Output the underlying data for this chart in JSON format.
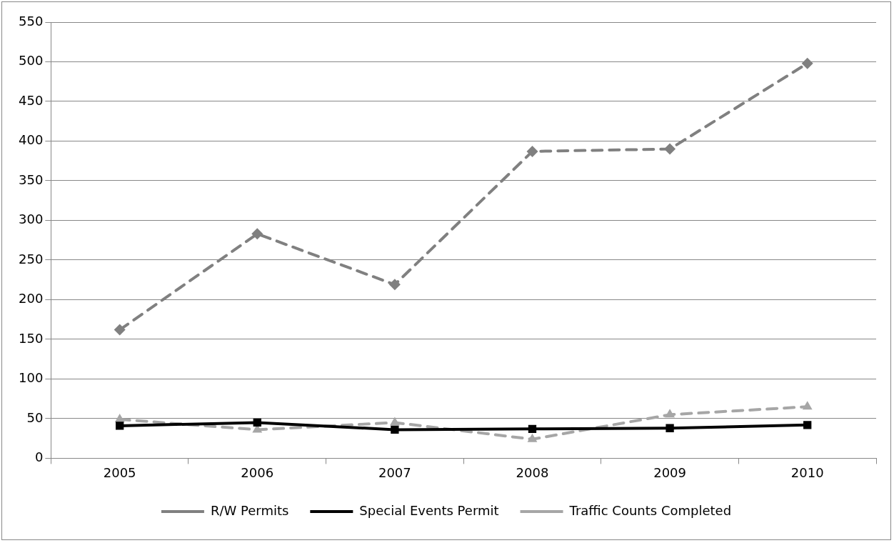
{
  "chart_data": {
    "type": "line",
    "categories": [
      "2005",
      "2006",
      "2007",
      "2008",
      "2009",
      "2010"
    ],
    "series": [
      {
        "name": "R/W Permits",
        "color": "#808080",
        "marker": "diamond",
        "line_style": "dashed",
        "values": [
          162,
          283,
          219,
          387,
          390,
          498
        ]
      },
      {
        "name": "Special Events Permit",
        "color": "#000000",
        "marker": "square",
        "line_style": "solid",
        "values": [
          41,
          45,
          36,
          37,
          38,
          42
        ]
      },
      {
        "name": "Traffic Counts Completed",
        "color": "#a6a6a6",
        "marker": "triangle",
        "line_style": "dashed",
        "values": [
          49,
          36,
          45,
          24,
          55,
          65
        ]
      }
    ],
    "ylim": [
      0,
      550
    ],
    "yticks": [
      0,
      50,
      100,
      150,
      200,
      250,
      300,
      350,
      400,
      450,
      500,
      550
    ],
    "grid": "y",
    "legend": "bottom"
  }
}
